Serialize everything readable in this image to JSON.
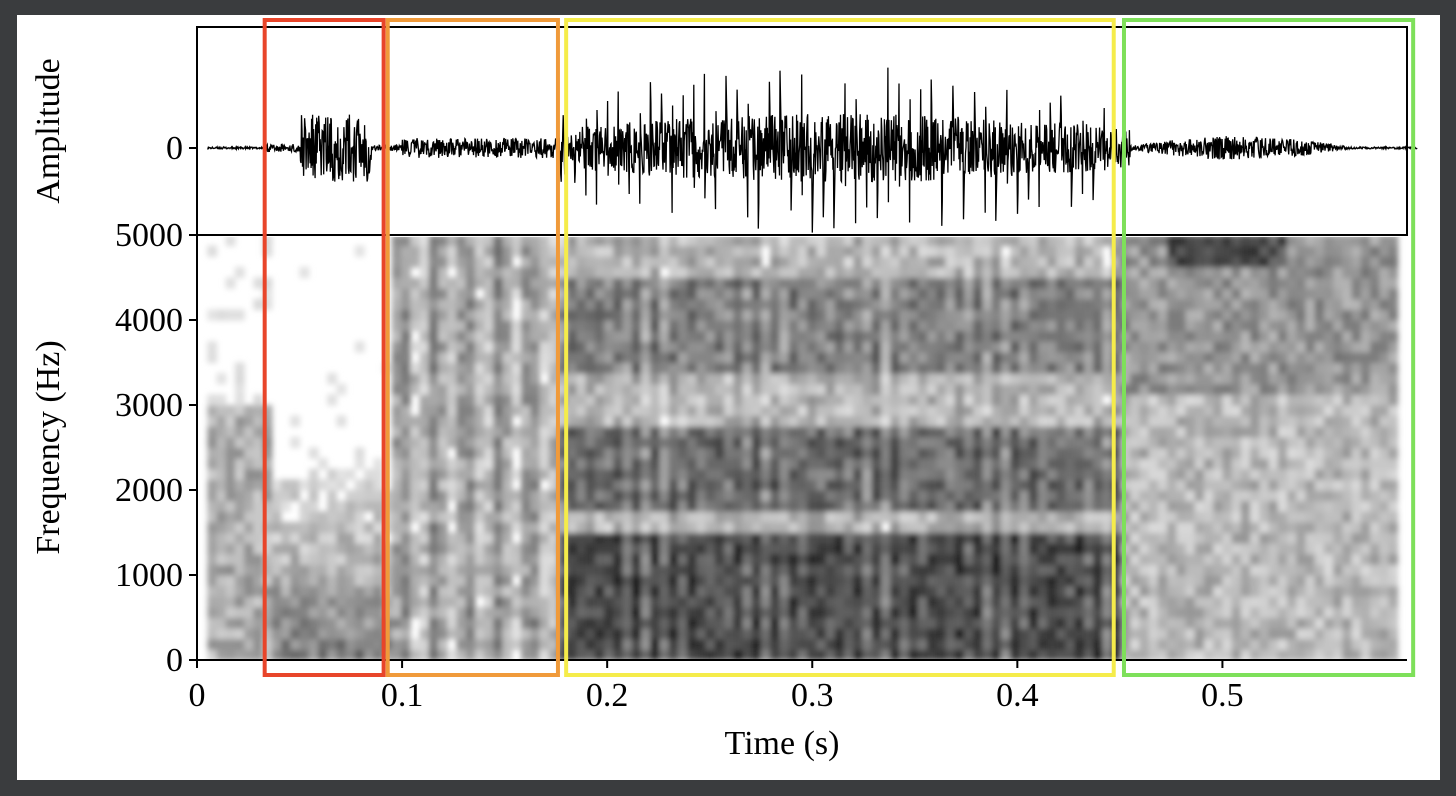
{
  "chart_data": {
    "type": "waveform+spectrogram",
    "xlabel": "Time (s)",
    "xlim": [
      0,
      0.59
    ],
    "xticks": [
      {
        "value": 0,
        "label": "0"
      },
      {
        "value": 0.1,
        "label": "0.1"
      },
      {
        "value": 0.2,
        "label": "0.2"
      },
      {
        "value": 0.3,
        "label": "0.3"
      },
      {
        "value": 0.4,
        "label": "0.4"
      },
      {
        "value": 0.5,
        "label": "0.5"
      }
    ],
    "waveform": {
      "ylabel": "Amplitude",
      "yticks": [
        {
          "value": 0,
          "label": "0"
        }
      ]
    },
    "spectrogram": {
      "ylabel": "Frequency (Hz)",
      "ylim": [
        0,
        5000
      ],
      "yticks": [
        {
          "value": 0,
          "label": "0"
        },
        {
          "value": 1000,
          "label": "1000"
        },
        {
          "value": 2000,
          "label": "2000"
        },
        {
          "value": 3000,
          "label": "3000"
        },
        {
          "value": 4000,
          "label": "4000"
        },
        {
          "value": 5000,
          "label": "5000"
        }
      ]
    },
    "segments": [
      {
        "start": 0.033,
        "end": 0.091,
        "color": "#e8452a"
      },
      {
        "start": 0.093,
        "end": 0.176,
        "color": "#f09a3a"
      },
      {
        "start": 0.18,
        "end": 0.447,
        "color": "#f5ec4a"
      },
      {
        "start": 0.452,
        "end": 0.593,
        "color": "#7ee05a"
      }
    ]
  }
}
